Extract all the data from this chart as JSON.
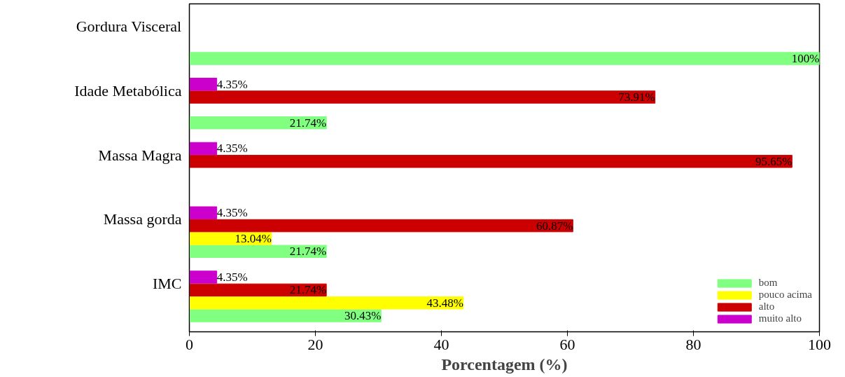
{
  "chart_data": {
    "type": "bar",
    "orientation": "horizontal",
    "xlabel": "Porcentagem (%)",
    "categories": [
      "Gordura Visceral",
      "Idade Metabólica",
      "Massa Magra",
      "Massa gorda",
      "IMC"
    ],
    "series": [
      {
        "name": "bom",
        "color": "#80ff80",
        "values": [
          100,
          21.74,
          null,
          21.74,
          30.43
        ],
        "value_labels": [
          "100%",
          "21.74%",
          null,
          "21.74%",
          "30.43%"
        ]
      },
      {
        "name": "pouco acima",
        "color": "#ffff00",
        "values": [
          null,
          null,
          null,
          13.04,
          43.48
        ],
        "value_labels": [
          null,
          null,
          null,
          "13.04%",
          "43.48%"
        ]
      },
      {
        "name": "alto",
        "color": "#cc0000",
        "values": [
          null,
          73.91,
          95.65,
          60.87,
          21.74
        ],
        "value_labels": [
          null,
          "73.91%",
          "95.65%",
          "60.87%",
          "21.74%"
        ]
      },
      {
        "name": "muito alto",
        "color": "#cc00cc",
        "values": [
          null,
          4.35,
          4.35,
          4.35,
          4.35
        ],
        "value_labels": [
          null,
          "4.35%",
          "4.35%",
          "4.35%",
          "4.35%"
        ]
      }
    ],
    "xlim": [
      0,
      100
    ],
    "xticks": [
      0,
      20,
      40,
      60,
      80,
      100
    ],
    "grid": false,
    "legend": "bottom right"
  }
}
